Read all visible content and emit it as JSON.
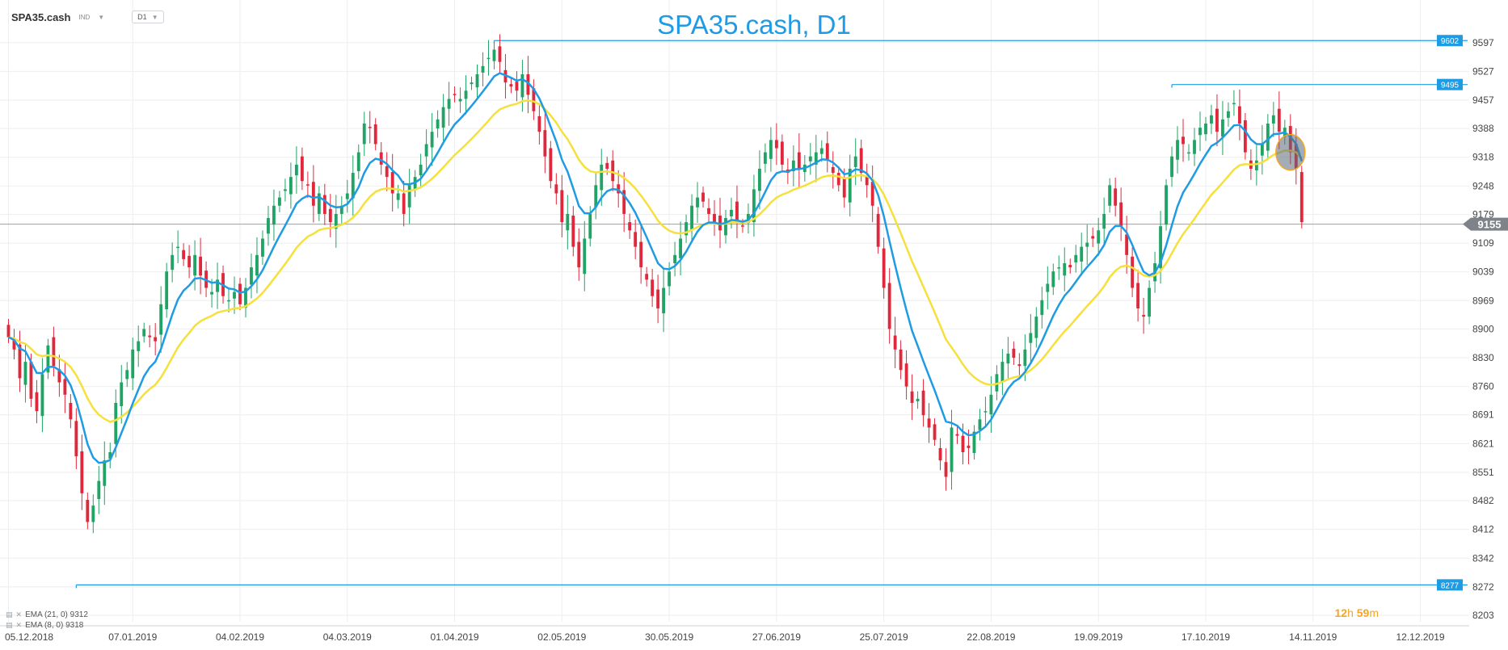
{
  "header": {
    "symbol": "SPA35.cash",
    "type_label": "IND",
    "timeframe": "D1"
  },
  "title": "SPA35.cash, D1",
  "indicators": [
    {
      "label": "EMA (21, 0) 9312",
      "color": "#f5e03c"
    },
    {
      "label": "EMA (8, 0) 9318",
      "color": "#1f9be4"
    }
  ],
  "countdown": {
    "hours": "12",
    "h_unit": "h",
    "minutes": "59",
    "m_unit": "m"
  },
  "colors": {
    "up": "#21a366",
    "down": "#e0283c",
    "ema_fast": "#1f9be4",
    "ema_slow": "#f5e03c",
    "level": "#1f9be4",
    "grid": "#eeeeee"
  },
  "chart_data": {
    "type": "candlestick",
    "title": "SPA35.cash, D1",
    "ylim": [
      8203,
      9630
    ],
    "y_ticks": [
      "9597",
      "9527",
      "9457",
      "9388",
      "9318",
      "9248",
      "9179",
      "9109",
      "9039",
      "8969",
      "8900",
      "8830",
      "8760",
      "8691",
      "8621",
      "8551",
      "8482",
      "8412",
      "8342",
      "8272",
      "8203"
    ],
    "x_tick_labels": [
      "05.12.2018",
      "07.01.2019",
      "04.02.2019",
      "04.03.2019",
      "01.04.2019",
      "02.05.2019",
      "30.05.2019",
      "27.06.2019",
      "25.07.2019",
      "22.08.2019",
      "19.09.2019",
      "17.10.2019",
      "14.11.2019",
      "12.12.2019"
    ],
    "x_tick_index": [
      0,
      22,
      41,
      60,
      79,
      98,
      117,
      136,
      155,
      174,
      193,
      212,
      231,
      250
    ],
    "current_price": "9155",
    "level_lines": [
      {
        "value": 9602,
        "label": "9602",
        "start_index": 86
      },
      {
        "value": 9495,
        "label": "9495",
        "start_index": 206
      },
      {
        "value": 8277,
        "label": "8277",
        "start_index": 12
      }
    ],
    "close": [
      8880,
      8850,
      8780,
      8820,
      8730,
      8700,
      8790,
      8860,
      8810,
      8770,
      8740,
      8680,
      8590,
      8500,
      8430,
      8470,
      8530,
      8580,
      8600,
      8720,
      8770,
      8800,
      8850,
      8870,
      8900,
      8880,
      8870,
      8960,
      9040,
      9080,
      9100,
      9070,
      9050,
      9080,
      9030,
      9000,
      8990,
      9020,
      8980,
      8970,
      8990,
      8960,
      9000,
      9050,
      9080,
      9120,
      9170,
      9200,
      9220,
      9240,
      9270,
      9300,
      9260,
      9250,
      9200,
      9230,
      9180,
      9160,
      9180,
      9200,
      9230,
      9280,
      9330,
      9400,
      9390,
      9350,
      9300,
      9270,
      9230,
      9230,
      9180,
      9250,
      9270,
      9300,
      9350,
      9380,
      9410,
      9440,
      9460,
      9470,
      9460,
      9480,
      9500,
      9520,
      9540,
      9560,
      9580,
      9550,
      9500,
      9490,
      9480,
      9520,
      9470,
      9430,
      9380,
      9320,
      9260,
      9230,
      9160,
      9180,
      9100,
      9050,
      9120,
      9180,
      9250,
      9300,
      9290,
      9260,
      9230,
      9180,
      9140,
      9100,
      9050,
      9020,
      8980,
      8950,
      9000,
      9040,
      9080,
      9120,
      9160,
      9200,
      9220,
      9210,
      9180,
      9160,
      9140,
      9170,
      9190,
      9160,
      9150,
      9180,
      9240,
      9290,
      9330,
      9360,
      9340,
      9300,
      9280,
      9310,
      9290,
      9300,
      9320,
      9330,
      9340,
      9310,
      9280,
      9250,
      9220,
      9290,
      9320,
      9280,
      9250,
      9200,
      9100,
      9000,
      8900,
      8850,
      8800,
      8760,
      8720,
      8730,
      8690,
      8660,
      8630,
      8580,
      8540,
      8660,
      8640,
      8600,
      8610,
      8650,
      8680,
      8700,
      8740,
      8790,
      8820,
      8840,
      8830,
      8810,
      8850,
      8890,
      8930,
      8970,
      9010,
      9040,
      9050,
      9060,
      9050,
      9080,
      9100,
      9110,
      9120,
      9140,
      9180,
      9250,
      9200,
      9150,
      9080,
      9000,
      8950,
      8930,
      9000,
      9060,
      9150,
      9250,
      9320,
      9360,
      9350,
      9330,
      9360,
      9390,
      9400,
      9420,
      9380,
      9410,
      9430,
      9450,
      9400,
      9330,
      9290,
      9310,
      9350,
      9400,
      9420,
      9380,
      9390,
      9330,
      9290,
      9160
    ]
  }
}
